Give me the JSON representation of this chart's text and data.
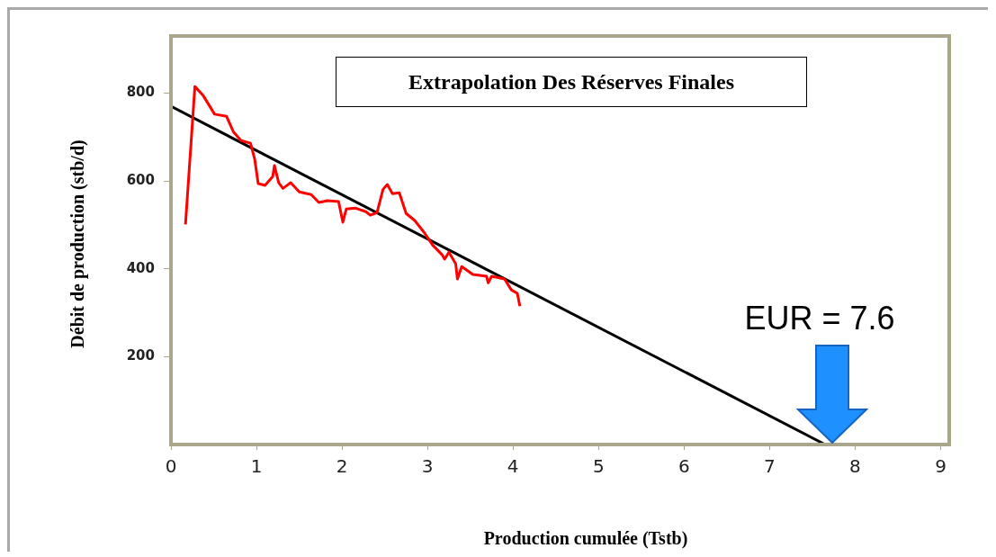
{
  "chart_data": {
    "type": "line",
    "title": "Extrapolation Des Réserves Finales",
    "xlabel": "Production cumulée (Tstb)",
    "ylabel": "Débit de production (stb/d)",
    "xlim": [
      0,
      9.1
    ],
    "xticks": [
      0,
      1,
      2,
      3,
      4,
      5,
      6,
      7,
      8,
      9
    ],
    "ylim": [
      0,
      930
    ],
    "yticks": [
      200,
      400,
      600,
      800
    ],
    "grid": false,
    "legend": false,
    "marker": "none",
    "line_style": "solid",
    "series": [
      {
        "type": "line",
        "color": "#ff0000",
        "x": [
          0.17,
          0.28,
          0.375,
          0.51,
          0.65,
          0.73,
          0.82,
          0.93,
          0.98,
          1.02,
          1.1,
          1.19,
          1.21,
          1.26,
          1.31,
          1.4,
          1.5,
          1.64,
          1.73,
          1.83,
          1.96,
          2.01,
          2.05,
          2.16,
          2.28,
          2.33,
          2.41,
          2.48,
          2.53,
          2.59,
          2.67,
          2.75,
          2.85,
          2.96,
          3.06,
          3.17,
          3.2,
          3.25,
          3.33,
          3.35,
          3.4,
          3.53,
          3.69,
          3.71,
          3.75,
          3.9,
          3.98,
          4.05,
          4.08
        ],
        "values": [
          501,
          815,
          795,
          752,
          747,
          712,
          692,
          686,
          649,
          594,
          590,
          610,
          635,
          596,
          583,
          596,
          575,
          569,
          551,
          555,
          553,
          506,
          536,
          538,
          530,
          522,
          528,
          581,
          592,
          571,
          573,
          526,
          510,
          483,
          454,
          432,
          422,
          438,
          411,
          377,
          405,
          387,
          383,
          368,
          383,
          377,
          352,
          344,
          315
        ]
      },
      {
        "type": "line",
        "color": "#000000",
        "x": [
          0,
          7.65
        ],
        "values": [
          770,
          0
        ]
      }
    ],
    "annotations": [
      "EUR = 7.6"
    ]
  }
}
